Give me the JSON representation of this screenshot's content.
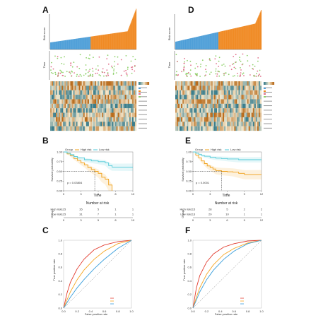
{
  "colors": {
    "low": "#4f9fd8",
    "high": "#f08a24",
    "heat_low": "#3a7d8c",
    "heat_mid": "#f4ead0",
    "heat_high": "#b86a1a",
    "km_high": "#f0a11a",
    "km_low": "#4fc9d8",
    "roc_1": "#e23b2e",
    "roc_3": "#f5a623",
    "roc_5": "#3b9fdc"
  },
  "panels": {
    "A": {
      "label": "A",
      "ylabel_score": "Risk score",
      "ylabel_time": "Time"
    },
    "D": {
      "label": "D",
      "ylabel_score": "Risk score",
      "ylabel_time": "Time"
    },
    "B": {
      "label": "B",
      "legend": [
        "Group",
        "High risk",
        "Low risk"
      ],
      "ylabel": "Survival probability",
      "xlabel": "Time",
      "pvalue": "p = 0.03804",
      "risk_title": "Number at risk",
      "risk_ylabel": "Group",
      "risk_rows": [
        [
          "115",
          "35",
          "5",
          "1",
          "1"
        ],
        [
          "115",
          "31",
          "7",
          "1",
          "1"
        ]
      ]
    },
    "E": {
      "label": "E",
      "legend": [
        "Group",
        "High risk",
        "Low risk"
      ],
      "ylabel": "Survival probability",
      "xlabel": "Time",
      "pvalue": "p = 0.0001",
      "risk_title": "Number at risk",
      "risk_ylabel": "Group",
      "risk_rows": [
        [
          "115",
          "28",
          "5",
          "2",
          "2"
        ],
        [
          "113",
          "29",
          "10",
          "1",
          "1"
        ]
      ]
    },
    "C": {
      "label": "C",
      "xlabel": "False positive rate",
      "ylabel": "True positive rate"
    },
    "F": {
      "label": "F",
      "xlabel": "False positive rate",
      "ylabel": "True positive rate"
    }
  },
  "chart_data": [
    {
      "panel": "B",
      "type": "line",
      "subtype": "kaplan-meier",
      "xlim": [
        0,
        10
      ],
      "ylim": [
        0,
        1
      ],
      "xticks": [
        "0",
        "3",
        "5",
        "8",
        "10"
      ],
      "yticks": [
        "0.00",
        "0.25",
        "0.50",
        "0.75",
        "1.00"
      ],
      "series": [
        {
          "name": "High risk",
          "x": [
            0,
            0.5,
            1,
            1.5,
            2,
            2.5,
            3,
            3.5,
            4,
            4.5,
            5,
            5.5,
            6,
            6.5,
            7
          ],
          "y": [
            1.0,
            0.95,
            0.9,
            0.83,
            0.78,
            0.72,
            0.67,
            0.6,
            0.55,
            0.5,
            0.45,
            0.35,
            0.3,
            0.15,
            0.0
          ]
        },
        {
          "name": "Low risk",
          "x": [
            0,
            0.5,
            1,
            1.5,
            2,
            3,
            4,
            5,
            6,
            6.5,
            7,
            10
          ],
          "y": [
            1.0,
            0.97,
            0.93,
            0.88,
            0.85,
            0.8,
            0.77,
            0.75,
            0.72,
            0.65,
            0.61,
            0.61
          ]
        }
      ]
    },
    {
      "panel": "E",
      "type": "line",
      "subtype": "kaplan-meier",
      "xlim": [
        0,
        12
      ],
      "ylim": [
        0,
        1
      ],
      "xticks": [
        "0",
        "3",
        "6",
        "9",
        "12"
      ],
      "yticks": [
        "0.00",
        "0.25",
        "0.50",
        "0.75",
        "1.00"
      ],
      "series": [
        {
          "name": "High risk",
          "x": [
            0,
            0.5,
            1,
            1.5,
            2,
            2.5,
            3,
            3.5,
            4,
            5,
            6,
            7,
            8,
            9,
            12
          ],
          "y": [
            1.0,
            0.92,
            0.85,
            0.77,
            0.7,
            0.64,
            0.6,
            0.56,
            0.52,
            0.5,
            0.49,
            0.48,
            0.45,
            0.42,
            0.42
          ]
        },
        {
          "name": "Low risk",
          "x": [
            0,
            0.5,
            1,
            1.5,
            2,
            3,
            4,
            5,
            6,
            8,
            12
          ],
          "y": [
            1.0,
            0.97,
            0.94,
            0.91,
            0.89,
            0.86,
            0.84,
            0.83,
            0.82,
            0.8,
            0.8
          ]
        }
      ]
    },
    {
      "panel": "C",
      "type": "line",
      "subtype": "roc",
      "xlim": [
        0,
        1
      ],
      "ylim": [
        0,
        1
      ],
      "xticks": [
        "0.0",
        "0.2",
        "0.4",
        "0.6",
        "0.8",
        "1.0"
      ],
      "yticks": [
        "0.0",
        "0.2",
        "0.4",
        "0.6",
        "0.8",
        "1.0"
      ],
      "series": [
        {
          "x": [
            0,
            0.05,
            0.1,
            0.2,
            0.3,
            0.45,
            0.6,
            0.8,
            1
          ],
          "y": [
            0,
            0.22,
            0.38,
            0.58,
            0.72,
            0.86,
            0.93,
            0.98,
            1
          ]
        },
        {
          "x": [
            0,
            0.05,
            0.1,
            0.2,
            0.3,
            0.45,
            0.6,
            0.8,
            1
          ],
          "y": [
            0,
            0.12,
            0.24,
            0.42,
            0.56,
            0.72,
            0.84,
            0.95,
            1
          ]
        },
        {
          "x": [
            0,
            0.05,
            0.1,
            0.2,
            0.3,
            0.45,
            0.6,
            0.8,
            1
          ],
          "y": [
            0,
            0.08,
            0.16,
            0.3,
            0.42,
            0.58,
            0.72,
            0.88,
            1
          ]
        }
      ]
    },
    {
      "panel": "F",
      "type": "line",
      "subtype": "roc",
      "xlim": [
        0,
        1
      ],
      "ylim": [
        0,
        1
      ],
      "xticks": [
        "0.0",
        "0.2",
        "0.4",
        "0.6",
        "0.8",
        "1.0"
      ],
      "yticks": [
        "0.0",
        "0.2",
        "0.4",
        "0.6",
        "0.8",
        "1.0"
      ],
      "series": [
        {
          "x": [
            0,
            0.05,
            0.1,
            0.2,
            0.3,
            0.45,
            0.6,
            0.8,
            1
          ],
          "y": [
            0,
            0.3,
            0.48,
            0.68,
            0.8,
            0.9,
            0.95,
            0.99,
            1
          ]
        },
        {
          "x": [
            0,
            0.05,
            0.1,
            0.2,
            0.3,
            0.45,
            0.6,
            0.8,
            1
          ],
          "y": [
            0,
            0.16,
            0.3,
            0.5,
            0.64,
            0.79,
            0.88,
            0.96,
            1
          ]
        },
        {
          "x": [
            0,
            0.05,
            0.1,
            0.2,
            0.3,
            0.45,
            0.6,
            0.8,
            1
          ],
          "y": [
            0,
            0.12,
            0.24,
            0.42,
            0.56,
            0.72,
            0.84,
            0.95,
            1
          ]
        }
      ]
    }
  ]
}
